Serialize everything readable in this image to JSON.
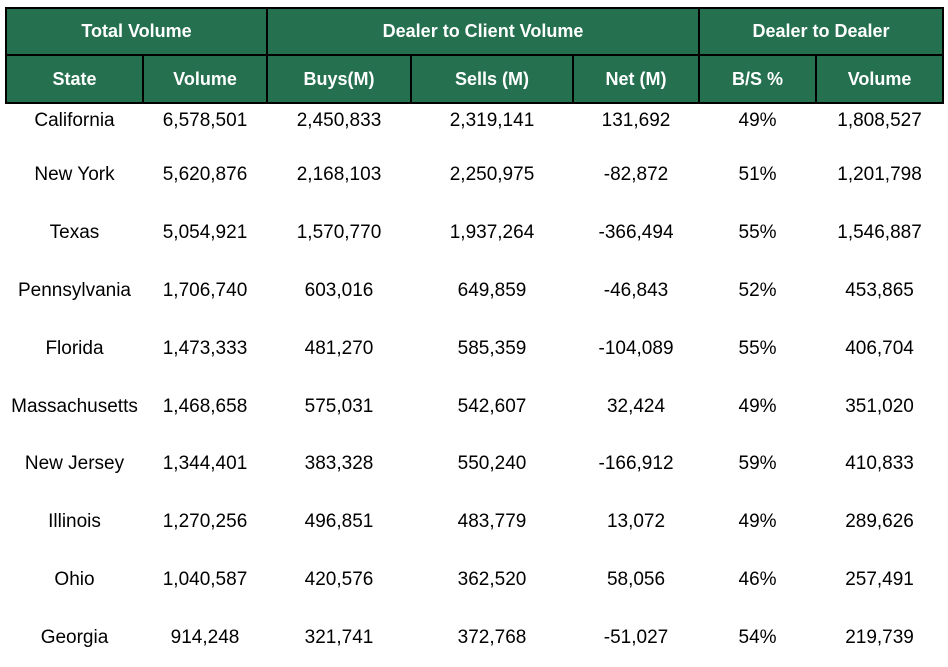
{
  "colors": {
    "header_background": "#25704f",
    "header_text": "#ffffff",
    "border": "#000000",
    "body_text": "#000000"
  },
  "table": {
    "group_headers": [
      {
        "label": "Total Volume",
        "span": 2
      },
      {
        "label": "Dealer to Client Volume",
        "span": 3
      },
      {
        "label": "Dealer to Dealer",
        "span": 2
      }
    ],
    "columns": [
      "State",
      "Volume",
      "Buys(M)",
      "Sells (M)",
      "Net (M)",
      "B/S %",
      "Volume"
    ],
    "rows": [
      [
        "California",
        "6,578,501",
        "2,450,833",
        "2,319,141",
        "131,692",
        "49%",
        "1,808,527"
      ],
      [
        "New York",
        "5,620,876",
        "2,168,103",
        "2,250,975",
        "-82,872",
        "51%",
        "1,201,798"
      ],
      [
        "Texas",
        "5,054,921",
        "1,570,770",
        "1,937,264",
        "-366,494",
        "55%",
        "1,546,887"
      ],
      [
        "Pennsylvania",
        "1,706,740",
        "603,016",
        "649,859",
        "-46,843",
        "52%",
        "453,865"
      ],
      [
        "Florida",
        "1,473,333",
        "481,270",
        "585,359",
        "-104,089",
        "55%",
        "406,704"
      ],
      [
        "Massachusetts",
        "1,468,658",
        "575,031",
        "542,607",
        "32,424",
        "49%",
        "351,020"
      ],
      [
        "New Jersey",
        "1,344,401",
        "383,328",
        "550,240",
        "-166,912",
        "59%",
        "410,833"
      ],
      [
        "Illinois",
        "1,270,256",
        "496,851",
        "483,779",
        "13,072",
        "49%",
        "289,626"
      ],
      [
        "Ohio",
        "1,040,587",
        "420,576",
        "362,520",
        "58,056",
        "46%",
        "257,491"
      ],
      [
        "Georgia",
        "914,248",
        "321,741",
        "372,768",
        "-51,027",
        "54%",
        "219,739"
      ]
    ]
  }
}
